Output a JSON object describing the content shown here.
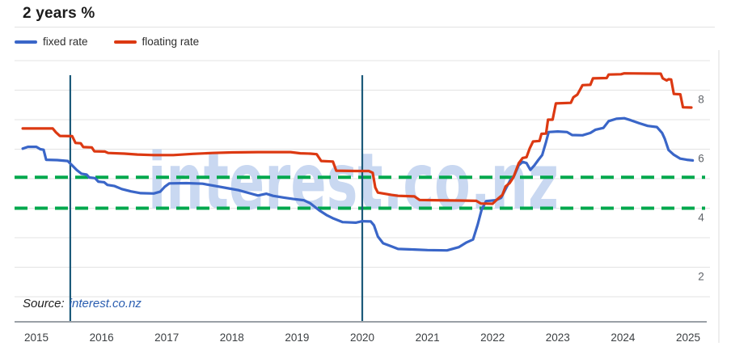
{
  "header": {
    "title": "2 years %"
  },
  "legend": [
    {
      "label": "fixed rate",
      "color": "#3a66c8"
    },
    {
      "label": "floating rate",
      "color": "#dc3912"
    }
  ],
  "source": {
    "label": "Source:",
    "link_text": "interest.co.nz"
  },
  "watermark": "interest.co.nz",
  "colors": {
    "grid": "#e3e3e3",
    "axis": "#9aa0a6",
    "right_border": "#dcdcdc",
    "reference_green": "#00a84d",
    "marker_teal": "#1c5a7a",
    "watermark_blue": "#c9d8f1",
    "y_tick_text": "#5f6368",
    "x_tick_text": "#3c4043"
  },
  "chart_data": {
    "type": "line",
    "title": "2 years %",
    "ylabel": "%",
    "legend_position": "top-left",
    "grid": true,
    "xlim": [
      2014.66,
      2025.33
    ],
    "ylim": [
      0.15,
      9
    ],
    "x_ticks": [
      2015,
      2016,
      2017,
      2018,
      2019,
      2020,
      2021,
      2022,
      2023,
      2024,
      2025
    ],
    "y_ticks": [
      8,
      6,
      4,
      2
    ],
    "gridlines_y": [
      1,
      2,
      3,
      4,
      5,
      6,
      7,
      8,
      9
    ],
    "reference_lines": {
      "style": "dashed",
      "values": [
        5.05,
        4.0
      ]
    },
    "vertical_markers": [
      2015.52,
      2020.0
    ],
    "series": [
      {
        "name": "fixed rate",
        "color": "#3a66c8",
        "points": [
          [
            2014.79,
            6.02
          ],
          [
            2014.87,
            6.08
          ],
          [
            2015.0,
            6.08
          ],
          [
            2015.06,
            6.0
          ],
          [
            2015.11,
            5.98
          ],
          [
            2015.15,
            5.64
          ],
          [
            2015.32,
            5.63
          ],
          [
            2015.48,
            5.6
          ],
          [
            2015.54,
            5.47
          ],
          [
            2015.62,
            5.29
          ],
          [
            2015.69,
            5.17
          ],
          [
            2015.77,
            5.14
          ],
          [
            2015.81,
            5.04
          ],
          [
            2015.9,
            5.02
          ],
          [
            2015.95,
            4.9
          ],
          [
            2016.04,
            4.88
          ],
          [
            2016.09,
            4.79
          ],
          [
            2016.2,
            4.75
          ],
          [
            2016.31,
            4.65
          ],
          [
            2016.45,
            4.57
          ],
          [
            2016.6,
            4.51
          ],
          [
            2016.8,
            4.5
          ],
          [
            2016.9,
            4.56
          ],
          [
            2016.97,
            4.73
          ],
          [
            2017.04,
            4.84
          ],
          [
            2017.3,
            4.85
          ],
          [
            2017.55,
            4.83
          ],
          [
            2017.75,
            4.75
          ],
          [
            2017.95,
            4.67
          ],
          [
            2018.1,
            4.61
          ],
          [
            2018.25,
            4.52
          ],
          [
            2018.4,
            4.43
          ],
          [
            2018.53,
            4.49
          ],
          [
            2018.63,
            4.42
          ],
          [
            2018.8,
            4.36
          ],
          [
            2018.95,
            4.31
          ],
          [
            2019.1,
            4.27
          ],
          [
            2019.2,
            4.17
          ],
          [
            2019.34,
            3.93
          ],
          [
            2019.45,
            3.77
          ],
          [
            2019.56,
            3.65
          ],
          [
            2019.7,
            3.53
          ],
          [
            2019.9,
            3.51
          ],
          [
            2020.0,
            3.56
          ],
          [
            2020.13,
            3.55
          ],
          [
            2020.18,
            3.42
          ],
          [
            2020.24,
            3.04
          ],
          [
            2020.32,
            2.81
          ],
          [
            2020.42,
            2.73
          ],
          [
            2020.55,
            2.62
          ],
          [
            2020.8,
            2.6
          ],
          [
            2021.0,
            2.58
          ],
          [
            2021.3,
            2.57
          ],
          [
            2021.48,
            2.68
          ],
          [
            2021.6,
            2.84
          ],
          [
            2021.7,
            2.94
          ],
          [
            2021.77,
            3.44
          ],
          [
            2021.83,
            3.94
          ],
          [
            2021.9,
            4.24
          ],
          [
            2022.05,
            4.27
          ],
          [
            2022.13,
            4.35
          ],
          [
            2022.2,
            4.65
          ],
          [
            2022.27,
            4.95
          ],
          [
            2022.33,
            5.1
          ],
          [
            2022.4,
            5.45
          ],
          [
            2022.46,
            5.57
          ],
          [
            2022.52,
            5.53
          ],
          [
            2022.58,
            5.3
          ],
          [
            2022.64,
            5.45
          ],
          [
            2022.7,
            5.63
          ],
          [
            2022.76,
            5.8
          ],
          [
            2022.82,
            6.25
          ],
          [
            2022.86,
            6.58
          ],
          [
            2023.0,
            6.6
          ],
          [
            2023.14,
            6.58
          ],
          [
            2023.22,
            6.48
          ],
          [
            2023.38,
            6.47
          ],
          [
            2023.5,
            6.55
          ],
          [
            2023.58,
            6.66
          ],
          [
            2023.7,
            6.72
          ],
          [
            2023.78,
            6.95
          ],
          [
            2023.9,
            7.03
          ],
          [
            2024.02,
            7.05
          ],
          [
            2024.12,
            6.98
          ],
          [
            2024.25,
            6.88
          ],
          [
            2024.38,
            6.79
          ],
          [
            2024.52,
            6.75
          ],
          [
            2024.6,
            6.55
          ],
          [
            2024.64,
            6.36
          ],
          [
            2024.7,
            5.97
          ],
          [
            2024.78,
            5.81
          ],
          [
            2024.88,
            5.68
          ],
          [
            2024.98,
            5.64
          ],
          [
            2025.07,
            5.62
          ]
        ]
      },
      {
        "name": "floating rate",
        "color": "#dc3912",
        "points": [
          [
            2014.79,
            6.7
          ],
          [
            2015.25,
            6.7
          ],
          [
            2015.3,
            6.57
          ],
          [
            2015.36,
            6.45
          ],
          [
            2015.55,
            6.44
          ],
          [
            2015.6,
            6.21
          ],
          [
            2015.68,
            6.2
          ],
          [
            2015.72,
            6.07
          ],
          [
            2015.85,
            6.06
          ],
          [
            2015.89,
            5.93
          ],
          [
            2016.05,
            5.92
          ],
          [
            2016.1,
            5.87
          ],
          [
            2016.35,
            5.85
          ],
          [
            2016.55,
            5.82
          ],
          [
            2016.8,
            5.8
          ],
          [
            2017.1,
            5.8
          ],
          [
            2017.4,
            5.84
          ],
          [
            2017.7,
            5.87
          ],
          [
            2018.0,
            5.89
          ],
          [
            2018.4,
            5.9
          ],
          [
            2018.9,
            5.9
          ],
          [
            2019.05,
            5.86
          ],
          [
            2019.2,
            5.85
          ],
          [
            2019.3,
            5.83
          ],
          [
            2019.37,
            5.6
          ],
          [
            2019.55,
            5.58
          ],
          [
            2019.6,
            5.27
          ],
          [
            2019.9,
            5.26
          ],
          [
            2020.1,
            5.26
          ],
          [
            2020.16,
            5.2
          ],
          [
            2020.2,
            4.7
          ],
          [
            2020.24,
            4.53
          ],
          [
            2020.45,
            4.45
          ],
          [
            2020.55,
            4.42
          ],
          [
            2020.8,
            4.4
          ],
          [
            2020.88,
            4.28
          ],
          [
            2021.1,
            4.27
          ],
          [
            2021.5,
            4.26
          ],
          [
            2021.75,
            4.25
          ],
          [
            2021.82,
            4.16
          ],
          [
            2022.0,
            4.15
          ],
          [
            2022.07,
            4.3
          ],
          [
            2022.15,
            4.45
          ],
          [
            2022.2,
            4.74
          ],
          [
            2022.26,
            4.85
          ],
          [
            2022.32,
            5.05
          ],
          [
            2022.4,
            5.52
          ],
          [
            2022.46,
            5.7
          ],
          [
            2022.52,
            5.73
          ],
          [
            2022.57,
            6.03
          ],
          [
            2022.62,
            6.26
          ],
          [
            2022.72,
            6.28
          ],
          [
            2022.75,
            6.52
          ],
          [
            2022.82,
            6.53
          ],
          [
            2022.85,
            7.0
          ],
          [
            2022.92,
            7.0
          ],
          [
            2022.97,
            7.55
          ],
          [
            2023.2,
            7.57
          ],
          [
            2023.24,
            7.76
          ],
          [
            2023.3,
            7.85
          ],
          [
            2023.38,
            8.17
          ],
          [
            2023.5,
            8.18
          ],
          [
            2023.54,
            8.4
          ],
          [
            2023.75,
            8.41
          ],
          [
            2023.78,
            8.53
          ],
          [
            2023.97,
            8.54
          ],
          [
            2024.02,
            8.57
          ],
          [
            2024.58,
            8.56
          ],
          [
            2024.61,
            8.4
          ],
          [
            2024.67,
            8.33
          ],
          [
            2024.7,
            8.37
          ],
          [
            2024.74,
            8.36
          ],
          [
            2024.78,
            7.87
          ],
          [
            2024.88,
            7.86
          ],
          [
            2024.92,
            7.42
          ],
          [
            2025.05,
            7.41
          ]
        ]
      }
    ]
  }
}
